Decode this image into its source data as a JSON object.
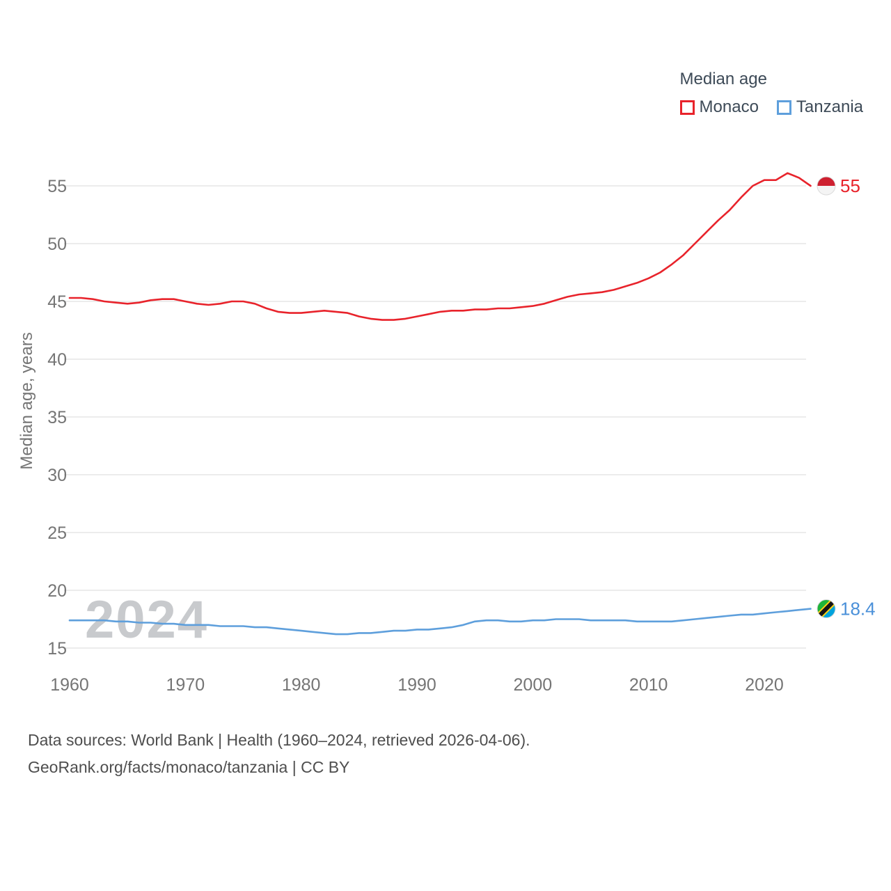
{
  "legend": {
    "title": "Median age",
    "items": [
      {
        "label": "Monaco",
        "color": "#e8232b"
      },
      {
        "label": "Tanzania",
        "color": "#5e9fdc"
      }
    ]
  },
  "watermark": "2024",
  "end_labels": [
    {
      "series": "Monaco",
      "text": "55",
      "color": "#e8232b"
    },
    {
      "series": "Tanzania",
      "text": "18.4",
      "color": "#4a90d9"
    }
  ],
  "footer": {
    "line1": "Data sources: World Bank | Health (1960–2024, retrieved 2026-04-06).",
    "line2": "GeoRank.org/facts/monaco/tanzania | CC BY"
  },
  "chart_data": {
    "type": "line",
    "title": "Median age",
    "xlabel": "",
    "ylabel": "Median age, years",
    "xlim": [
      1960,
      2024
    ],
    "ylim": [
      15,
      55
    ],
    "grid": "horizontal",
    "legend_position": "top-right",
    "x_ticks": [
      1960,
      1970,
      1980,
      1990,
      2000,
      2010,
      2020
    ],
    "y_ticks": [
      15,
      20,
      25,
      30,
      35,
      40,
      45,
      50,
      55
    ],
    "x": [
      1960,
      1961,
      1962,
      1963,
      1964,
      1965,
      1966,
      1967,
      1968,
      1969,
      1970,
      1971,
      1972,
      1973,
      1974,
      1975,
      1976,
      1977,
      1978,
      1979,
      1980,
      1981,
      1982,
      1983,
      1984,
      1985,
      1986,
      1987,
      1988,
      1989,
      1990,
      1991,
      1992,
      1993,
      1994,
      1995,
      1996,
      1997,
      1998,
      1999,
      2000,
      2001,
      2002,
      2003,
      2004,
      2005,
      2006,
      2007,
      2008,
      2009,
      2010,
      2011,
      2012,
      2013,
      2014,
      2015,
      2016,
      2017,
      2018,
      2019,
      2020,
      2021,
      2022,
      2023,
      2024
    ],
    "series": [
      {
        "name": "Monaco",
        "color": "#e8232b",
        "values": [
          45.3,
          45.3,
          45.2,
          45.0,
          44.9,
          44.8,
          44.9,
          45.1,
          45.2,
          45.2,
          45.0,
          44.8,
          44.7,
          44.8,
          45.0,
          45.0,
          44.8,
          44.4,
          44.1,
          44.0,
          44.0,
          44.1,
          44.2,
          44.1,
          44.0,
          43.7,
          43.5,
          43.4,
          43.4,
          43.5,
          43.7,
          43.9,
          44.1,
          44.2,
          44.2,
          44.3,
          44.3,
          44.4,
          44.4,
          44.5,
          44.6,
          44.8,
          45.1,
          45.4,
          45.6,
          45.7,
          45.8,
          46.0,
          46.3,
          46.6,
          47.0,
          47.5,
          48.2,
          49.0,
          50.0,
          51.0,
          52.0,
          52.9,
          54.0,
          55.0,
          55.5,
          55.5,
          56.1,
          55.7,
          55.0
        ]
      },
      {
        "name": "Tanzania",
        "color": "#5e9fdc",
        "values": [
          17.4,
          17.4,
          17.4,
          17.4,
          17.3,
          17.3,
          17.2,
          17.2,
          17.1,
          17.1,
          17.0,
          17.0,
          17.0,
          16.9,
          16.9,
          16.9,
          16.8,
          16.8,
          16.7,
          16.6,
          16.5,
          16.4,
          16.3,
          16.2,
          16.2,
          16.3,
          16.3,
          16.4,
          16.5,
          16.5,
          16.6,
          16.6,
          16.7,
          16.8,
          17.0,
          17.3,
          17.4,
          17.4,
          17.3,
          17.3,
          17.4,
          17.4,
          17.5,
          17.5,
          17.5,
          17.4,
          17.4,
          17.4,
          17.4,
          17.3,
          17.3,
          17.3,
          17.3,
          17.4,
          17.5,
          17.6,
          17.7,
          17.8,
          17.9,
          17.9,
          18.0,
          18.1,
          18.2,
          18.3,
          18.4
        ]
      }
    ]
  }
}
